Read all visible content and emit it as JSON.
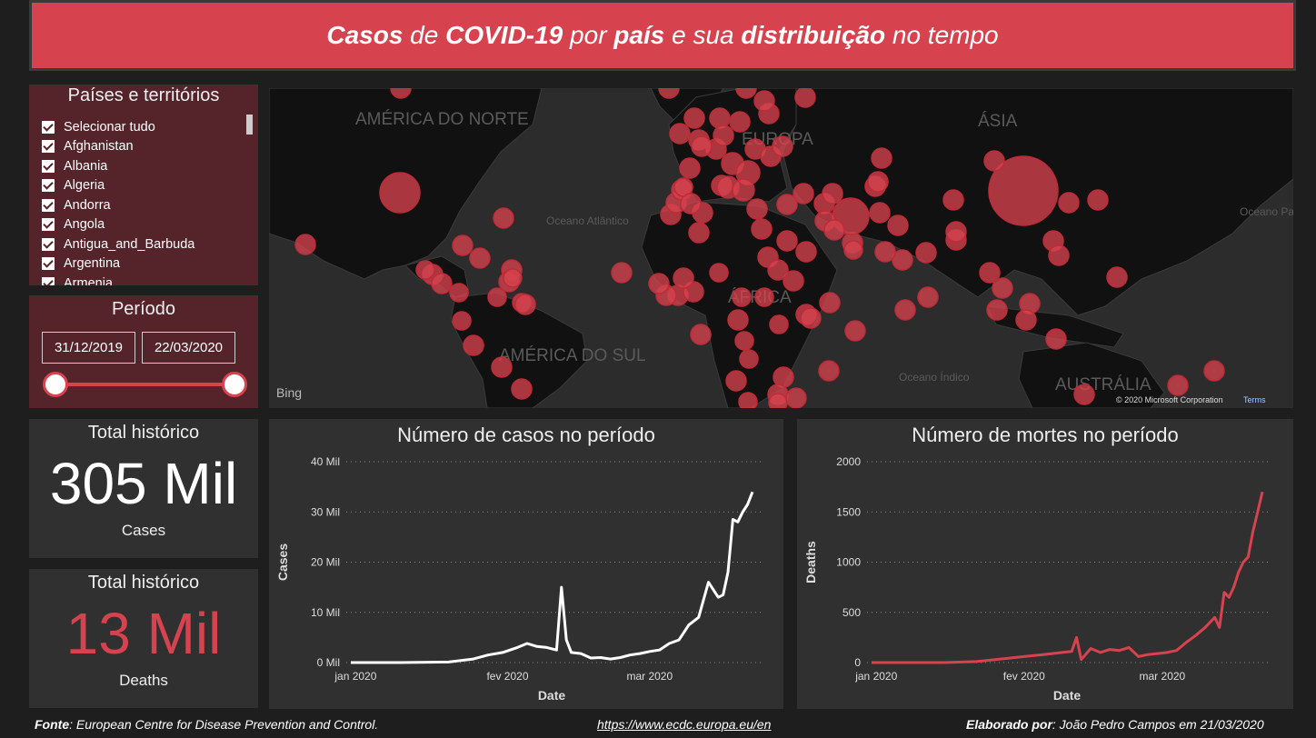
{
  "header": {
    "title_parts": [
      {
        "text": "Casos",
        "bold": true
      },
      {
        "text": " de ",
        "bold": false
      },
      {
        "text": "COVID-19",
        "bold": true
      },
      {
        "text": " por ",
        "bold": false
      },
      {
        "text": "país",
        "bold": true
      },
      {
        "text": " e sua ",
        "bold": false
      },
      {
        "text": "distribuição",
        "bold": true
      },
      {
        "text": " no tempo",
        "bold": false
      }
    ]
  },
  "country_filter": {
    "title": "Países e territórios",
    "items": [
      "Selecionar tudo",
      "Afghanistan",
      "Albania",
      "Algeria",
      "Andorra",
      "Angola",
      "Antigua_and_Barbuda",
      "Argentina",
      "Armenia"
    ],
    "checked": true
  },
  "period_filter": {
    "title": "Período",
    "start_date": "31/12/2019",
    "end_date": "22/03/2020"
  },
  "map": {
    "labels": {
      "north_america": "AMÉRICA DO NORTE",
      "south_america": "AMÉRICA DO SUL",
      "africa": "ÁFRICA",
      "europe": "EUROPA",
      "asia": "ÁSIA",
      "australia": "AUSTRÁLIA",
      "atlantic": "Oceano Atlântico",
      "indian": "Oceano Índico",
      "pacific": "Oceano Pacífico"
    },
    "attribution": "© 2020 Microsoft Corporation",
    "terms": "Terms",
    "bing": "Bing"
  },
  "kpis": {
    "cases": {
      "title": "Total histórico",
      "value": "305 Mil",
      "label": "Cases"
    },
    "deaths": {
      "title": "Total histórico",
      "value": "13 Mil",
      "label": "Deaths"
    }
  },
  "colors": {
    "accent": "#d6434e",
    "cases_line": "#ffffff",
    "deaths_line": "#d6434e"
  },
  "chart_data": [
    {
      "type": "line",
      "title": "Número de casos no período",
      "xlabel": "Date",
      "ylabel": "Cases",
      "x_ticks": [
        "jan 2020",
        "fev 2020",
        "mar 2020"
      ],
      "y_ticks": [
        "0 Mil",
        "10 Mil",
        "20 Mil",
        "30 Mil",
        "40 Mil"
      ],
      "ylim": [
        0,
        40000
      ],
      "xlim": [
        "2019-12-31",
        "2020-03-22"
      ],
      "grid": true,
      "x": [
        "2019-12-31",
        "2020-01-10",
        "2020-01-20",
        "2020-01-25",
        "2020-01-28",
        "2020-01-31",
        "2020-02-03",
        "2020-02-05",
        "2020-02-07",
        "2020-02-09",
        "2020-02-11",
        "2020-02-12",
        "2020-02-13",
        "2020-02-14",
        "2020-02-16",
        "2020-02-18",
        "2020-02-20",
        "2020-02-22",
        "2020-02-24",
        "2020-02-26",
        "2020-02-28",
        "2020-03-01",
        "2020-03-03",
        "2020-03-05",
        "2020-03-07",
        "2020-03-09",
        "2020-03-11",
        "2020-03-13",
        "2020-03-15",
        "2020-03-16",
        "2020-03-17",
        "2020-03-18",
        "2020-03-19",
        "2020-03-20",
        "2020-03-21",
        "2020-03-22"
      ],
      "values": [
        0,
        0,
        100,
        700,
        1500,
        2000,
        3000,
        3800,
        3200,
        3000,
        2500,
        15000,
        4500,
        2000,
        1800,
        900,
        1000,
        700,
        1000,
        1500,
        1800,
        2200,
        2500,
        3800,
        4500,
        7500,
        9000,
        16000,
        13000,
        13500,
        18000,
        28500,
        28000,
        30000,
        31500,
        34000
      ]
    },
    {
      "type": "line",
      "title": "Número de mortes no período",
      "xlabel": "Date",
      "ylabel": "Deaths",
      "x_ticks": [
        "jan 2020",
        "fev 2020",
        "mar 2020"
      ],
      "y_ticks": [
        "0",
        "500",
        "1000",
        "1500",
        "2000"
      ],
      "ylim": [
        0,
        2000
      ],
      "xlim": [
        "2019-12-31",
        "2020-03-22"
      ],
      "grid": true,
      "x": [
        "2019-12-31",
        "2020-01-15",
        "2020-01-22",
        "2020-01-28",
        "2020-02-01",
        "2020-02-05",
        "2020-02-09",
        "2020-02-11",
        "2020-02-12",
        "2020-02-13",
        "2020-02-15",
        "2020-02-17",
        "2020-02-19",
        "2020-02-21",
        "2020-02-23",
        "2020-02-25",
        "2020-02-27",
        "2020-02-29",
        "2020-03-02",
        "2020-03-04",
        "2020-03-06",
        "2020-03-08",
        "2020-03-10",
        "2020-03-11",
        "2020-03-12",
        "2020-03-13",
        "2020-03-14",
        "2020-03-15",
        "2020-03-16",
        "2020-03-17",
        "2020-03-18",
        "2020-03-19",
        "2020-03-20",
        "2020-03-21",
        "2020-03-22"
      ],
      "values": [
        0,
        0,
        10,
        40,
        60,
        80,
        100,
        110,
        250,
        30,
        140,
        100,
        130,
        120,
        150,
        60,
        80,
        90,
        100,
        120,
        200,
        270,
        350,
        400,
        450,
        350,
        700,
        650,
        750,
        900,
        1000,
        1050,
        1300,
        1500,
        1700
      ]
    }
  ],
  "footer": {
    "source_label": "Fonte",
    "source_text": ": European Centre for Disease Prevention and Control.",
    "url": "https://www.ecdc.europa.eu/en",
    "author_label": "Elaborado por",
    "author_text": ": João Pedro Campos em 21/03/2020"
  }
}
